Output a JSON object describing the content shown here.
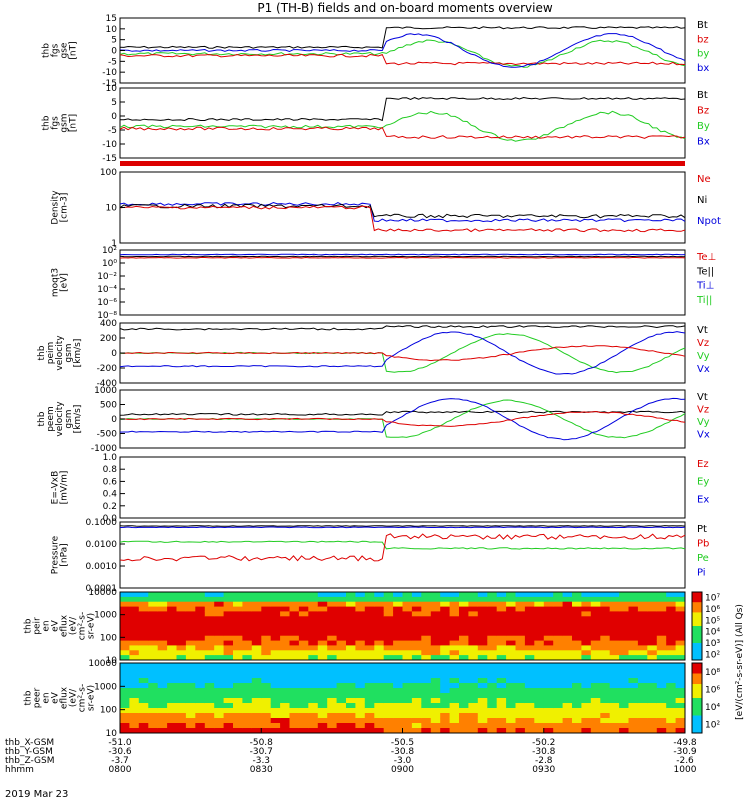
{
  "title": "P1 (TH-B) fields and on-board moments overview",
  "date_label": "2019 Mar 23",
  "chart_data": {
    "type": "line",
    "x_axis": {
      "unit": "hhmm",
      "ticks": [
        "0800",
        "0830",
        "0900",
        "0930",
        "1000"
      ],
      "ephemeris": [
        {
          "name": "thb_X-GSM",
          "values": [
            "-51.0",
            "-50.8",
            "-50.5",
            "-50.2",
            "-49.8"
          ]
        },
        {
          "name": "thb_Y-GSM",
          "values": [
            "-30.6",
            "-30.7",
            "-30.8",
            "-30.8",
            "-30.9"
          ]
        },
        {
          "name": "thb_Z-GSM",
          "values": [
            "-3.7",
            "-3.3",
            "-3.0",
            "-2.8",
            "-2.6"
          ]
        }
      ],
      "row_labels": [
        "thb_X-GSM",
        "thb_Y-GSM",
        "thb_Z-GSM",
        "hhmm"
      ]
    },
    "panels": [
      {
        "id": "fgs_gse",
        "ylabel": [
          "thb",
          "fgs",
          "gse",
          "[nT]"
        ],
        "ylim": [
          -15,
          15
        ],
        "yticks": [
          "15",
          "10",
          "5",
          "0",
          "-5",
          "-10",
          "-15"
        ],
        "legend": [
          "Bt",
          "bz",
          "by",
          "bx"
        ],
        "legend_colors": [
          "#000000",
          "#dd0000",
          "#22cc22",
          "#0000dd"
        ]
      },
      {
        "id": "fgs_gsm",
        "ylabel": [
          "thb",
          "fgs",
          "gsm",
          "[nT]"
        ],
        "ylim": [
          -15,
          15
        ],
        "yticks": [
          "10",
          "5",
          "0",
          "-5",
          "-10",
          "-15"
        ],
        "legend": [
          "Bt",
          "Bz",
          "By",
          "Bx"
        ],
        "legend_colors": [
          "#000000",
          "#dd0000",
          "#22cc22",
          "#0000dd"
        ]
      },
      {
        "id": "density",
        "ylabel": [
          "Density",
          "[cm-3]"
        ],
        "scale": "log",
        "yticks": [
          "100",
          "10",
          "1"
        ],
        "legend": [
          "Ne",
          "Ni",
          "Npot"
        ],
        "legend_colors": [
          "#dd0000",
          "#000000",
          "#0000dd"
        ]
      },
      {
        "id": "temperature",
        "ylabel": [
          "moqt3",
          "[eV]"
        ],
        "scale": "log",
        "yticks": [
          "10²",
          "10⁰",
          "10⁻²",
          "10⁻⁴",
          "10⁻⁶",
          "10⁻⁸"
        ],
        "legend": [
          "Te⊥",
          "Te||",
          "Ti⊥",
          "Ti||"
        ],
        "legend_colors": [
          "#dd0000",
          "#000000",
          "#0000dd",
          "#22cc22"
        ]
      },
      {
        "id": "peim_velocity",
        "ylabel": [
          "thb",
          "peim",
          "velocity",
          "gsm",
          "[km/s]"
        ],
        "ylim": [
          -400,
          400
        ],
        "yticks": [
          "400",
          "200",
          "0",
          "-200",
          "-400"
        ],
        "legend": [
          "Vt",
          "Vz",
          "Vy",
          "Vx"
        ],
        "legend_colors": [
          "#000000",
          "#dd0000",
          "#22cc22",
          "#0000dd"
        ]
      },
      {
        "id": "peem_velocity",
        "ylabel": [
          "thb",
          "peem",
          "velocity",
          "gsm",
          "[km/s]"
        ],
        "ylim": [
          -1000,
          1000
        ],
        "yticks": [
          "1000",
          "500",
          "0",
          "-500",
          "-1000"
        ],
        "legend": [
          "Vt",
          "Vz",
          "Vy",
          "Vx"
        ],
        "legend_colors": [
          "#000000",
          "#dd0000",
          "#22cc22",
          "#0000dd"
        ]
      },
      {
        "id": "efield",
        "ylabel": [
          "E=-VxB",
          "[mV/m]"
        ],
        "ylim": [
          0,
          1
        ],
        "yticks": [
          "1.0",
          "0.8",
          "0.6",
          "0.4",
          "0.2",
          "0.0"
        ],
        "legend": [
          "Ez",
          "Ey",
          "Ex"
        ],
        "legend_colors": [
          "#dd0000",
          "#22cc22",
          "#0000dd"
        ]
      },
      {
        "id": "pressure",
        "ylabel": [
          "Pressure",
          "[nPa]"
        ],
        "scale": "log",
        "yticks": [
          "0.1000",
          "0.0100",
          "0.0010",
          "0.0001"
        ],
        "legend": [
          "Pt",
          "Pb",
          "Pe",
          "Pi"
        ],
        "legend_colors": [
          "#000000",
          "#dd0000",
          "#22cc22",
          "#0000dd"
        ]
      },
      {
        "id": "peir_spec",
        "type": "heatmap",
        "ylabel": [
          "thb",
          "peir",
          "en",
          "eV",
          "eflux",
          "(eV/",
          "cm²-s-",
          "sr-eV)"
        ],
        "scale": "log",
        "yticks": [
          "10000",
          "1000",
          "100",
          "10"
        ]
      },
      {
        "id": "peer_spec",
        "type": "heatmap",
        "ylabel": [
          "thb",
          "peer",
          "en",
          "eV",
          "eflux",
          "(eV/",
          "cm²-s-",
          "sr-eV)"
        ],
        "scale": "log",
        "yticks": [
          "10000",
          "1000",
          "100",
          "10"
        ]
      }
    ],
    "colorbar": {
      "label": "[eV/(cm²-s-sr-eV)] (All Qs)",
      "ion_ticks": [
        "10⁷",
        "10⁶",
        "10⁵",
        "10⁴",
        "10³",
        "10²"
      ],
      "electron_ticks": [
        "10⁸",
        "10⁶",
        "10⁴",
        "10²"
      ]
    }
  }
}
